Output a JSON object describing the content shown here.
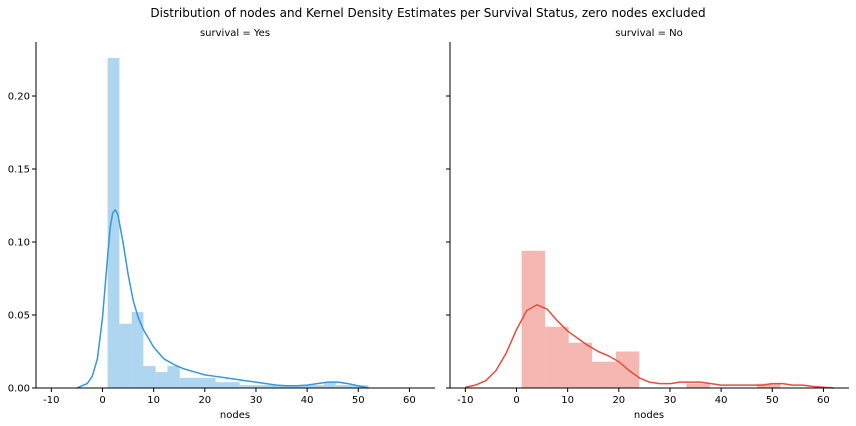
{
  "suptitle": "Distribution of nodes and Kernel Density Estimates per Survival Status, zero nodes excluded",
  "colors": {
    "yes": "#3498db",
    "no": "#e74c3c"
  },
  "chart_data": [
    {
      "type": "bar",
      "panel_title": "survival = Yes",
      "xlabel": "nodes",
      "ylabel": "",
      "xlim": [
        -13,
        65
      ],
      "ylim": [
        0,
        0.237
      ],
      "xticks": [
        -10,
        0,
        10,
        20,
        30,
        40,
        50,
        60
      ],
      "yticks": [
        0.0,
        0.05,
        0.1,
        0.15,
        0.2
      ],
      "ytick_labels": [
        "0.00",
        "0.05",
        "0.10",
        "0.15",
        "0.20"
      ],
      "histogram": {
        "bin_edges": [
          1.0,
          3.3,
          5.7,
          8.0,
          10.4,
          12.7,
          15.1,
          17.4,
          19.8,
          22.1,
          24.5,
          26.8,
          29.2,
          31.5,
          33.9,
          36.2,
          38.6,
          40.9,
          43.3,
          45.6,
          48.0,
          50.3,
          52.0
        ],
        "values": [
          0.226,
          0.044,
          0.052,
          0.015,
          0.011,
          0.015,
          0.007,
          0.007,
          0.007,
          0.004,
          0.004,
          0.002,
          0.002,
          0.002,
          0.002,
          0.002,
          0.002,
          0.002,
          0.004,
          0.002,
          0.002,
          0.002
        ]
      },
      "kde": {
        "x": [
          -5,
          -3,
          -2,
          -1,
          0,
          1,
          1.5,
          2,
          2.5,
          3,
          4,
          5,
          6,
          7,
          8,
          10,
          12,
          14,
          16,
          18,
          20,
          22,
          24,
          26,
          28,
          30,
          32,
          34,
          36,
          38,
          40,
          42,
          44,
          46,
          48,
          50,
          52
        ],
        "y": [
          0.0,
          0.003,
          0.008,
          0.02,
          0.048,
          0.09,
          0.11,
          0.12,
          0.122,
          0.119,
          0.1,
          0.078,
          0.06,
          0.048,
          0.04,
          0.028,
          0.02,
          0.016,
          0.013,
          0.011,
          0.009,
          0.008,
          0.007,
          0.006,
          0.005,
          0.004,
          0.003,
          0.002,
          0.0015,
          0.0015,
          0.002,
          0.003,
          0.004,
          0.004,
          0.003,
          0.0015,
          0.0
        ]
      }
    },
    {
      "type": "bar",
      "panel_title": "survival = No",
      "xlabel": "nodes",
      "ylabel": "",
      "xlim": [
        -13,
        65
      ],
      "ylim": [
        0,
        0.237
      ],
      "xticks": [
        -10,
        0,
        10,
        20,
        30,
        40,
        50,
        60
      ],
      "yticks": [
        0.0,
        0.05,
        0.1,
        0.15,
        0.2
      ],
      "ytick_labels": [
        "0.00",
        "0.05",
        "0.10",
        "0.15",
        "0.20"
      ],
      "histogram": {
        "bin_edges": [
          1.0,
          5.6,
          10.2,
          14.8,
          19.4,
          24.0,
          28.6,
          33.2,
          37.8,
          42.4,
          47.0,
          51.6
        ],
        "values": [
          0.094,
          0.042,
          0.031,
          0.018,
          0.025,
          0.0,
          0.0,
          0.003,
          0.0,
          0.0,
          0.003
        ]
      },
      "kde": {
        "x": [
          -10,
          -8,
          -6,
          -4,
          -2,
          0,
          2,
          4,
          6,
          8,
          10,
          12,
          14,
          16,
          18,
          20,
          22,
          24,
          26,
          28,
          30,
          32,
          34,
          36,
          38,
          40,
          42,
          44,
          46,
          48,
          50,
          52,
          54,
          56,
          58,
          60,
          62
        ],
        "y": [
          0.0005,
          0.002,
          0.005,
          0.012,
          0.024,
          0.04,
          0.053,
          0.057,
          0.054,
          0.046,
          0.039,
          0.034,
          0.029,
          0.025,
          0.022,
          0.018,
          0.012,
          0.007,
          0.004,
          0.003,
          0.003,
          0.004,
          0.004,
          0.004,
          0.003,
          0.002,
          0.002,
          0.002,
          0.002,
          0.002,
          0.003,
          0.003,
          0.002,
          0.002,
          0.001,
          0.0005,
          0.0
        ]
      }
    }
  ]
}
